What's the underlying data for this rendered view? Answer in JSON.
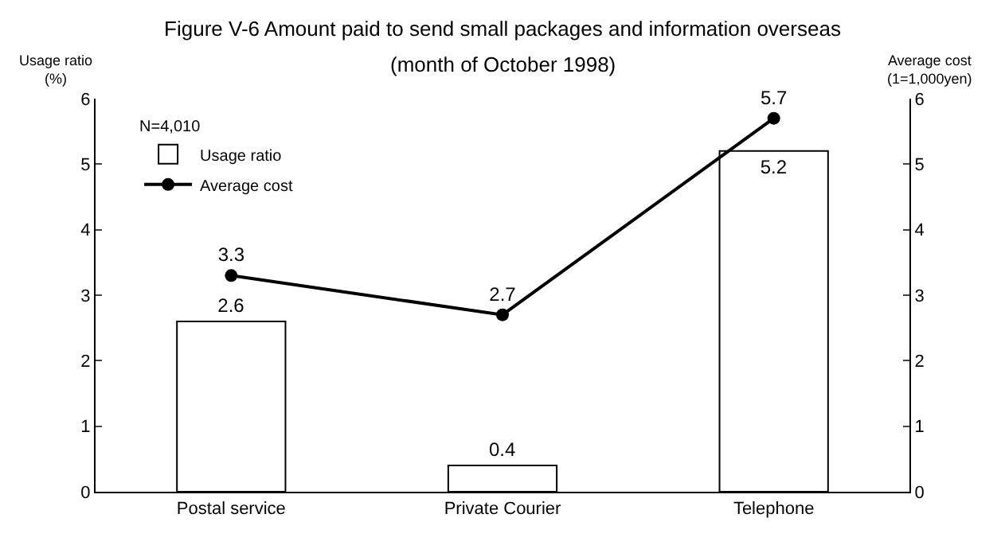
{
  "chart_data": {
    "type": "bar",
    "title": "Figure V-6 Amount paid to send small packages and information overseas",
    "subtitle": "(month of October 1998)",
    "ylabel": "Usage ratio\n(%)",
    "y2label": "Average cost\n(1=1,000yen)",
    "legend_title": "N=4,010",
    "categories": [
      "Postal service",
      "Private Courier",
      "Telephone"
    ],
    "series": [
      {
        "name": "Usage ratio",
        "color": "#ffffff",
        "values": [
          2.6,
          0.4,
          5.2
        ]
      },
      {
        "name": "Average cost",
        "type": "line",
        "axis": "y2",
        "color": "#000000",
        "values": [
          3.3,
          2.7,
          5.7
        ]
      }
    ],
    "ylim": [
      0,
      6
    ],
    "yticks": [
      0,
      1,
      2,
      3,
      4,
      5,
      6
    ],
    "y2lim": [
      0,
      6
    ],
    "y2ticks": [
      0,
      1,
      2,
      3,
      4,
      5,
      6
    ],
    "data_labels": true,
    "legend": "top left",
    "marker": "circle",
    "line_style": "solid"
  }
}
